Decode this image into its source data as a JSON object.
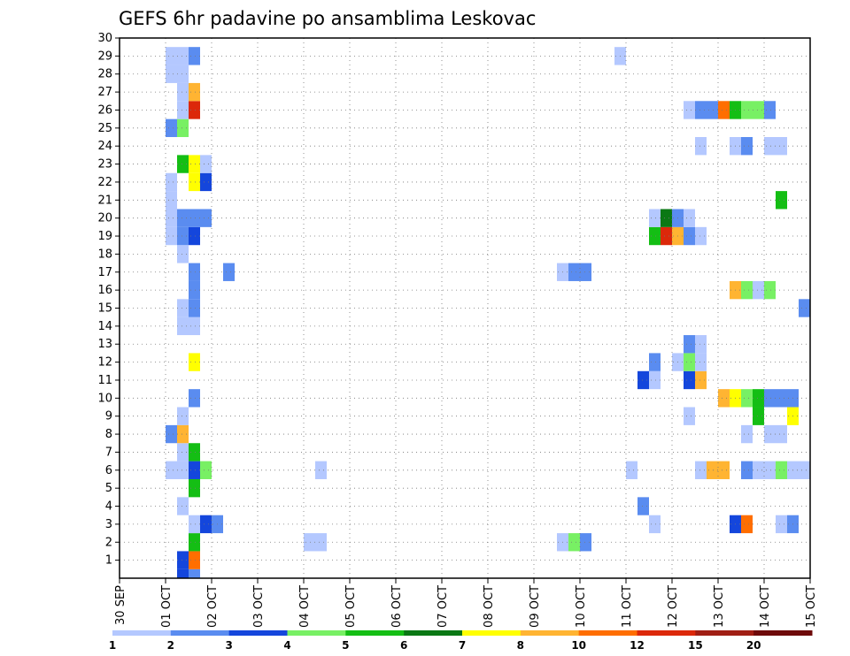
{
  "chart_data": {
    "type": "heatmap",
    "title": "GEFS 6hr padavine po ansamblima Leskovac",
    "y_label": "",
    "x_label": "",
    "y_range": [
      0,
      30
    ],
    "y_ticks": [
      "1",
      "2",
      "3",
      "4",
      "5",
      "6",
      "7",
      "8",
      "9",
      "10",
      "11",
      "12",
      "13",
      "14",
      "15",
      "16",
      "17",
      "18",
      "19",
      "20",
      "21",
      "22",
      "23",
      "24",
      "25",
      "26",
      "27",
      "28",
      "29",
      "30"
    ],
    "x_range_days": [
      0,
      15
    ],
    "x_tick_labels": [
      "30 SEP",
      "01 OCT",
      "02 OCT",
      "03 OCT",
      "04 OCT",
      "05 OCT",
      "06 OCT",
      "07 OCT",
      "08 OCT",
      "09 OCT",
      "10 OCT",
      "11 OCT",
      "12 OCT",
      "13 OCT",
      "14 OCT",
      "15 OCT"
    ],
    "grid": true,
    "legend": {
      "position": "bottom",
      "labels": [
        "1",
        "2",
        "3",
        "4",
        "5",
        "6",
        "7",
        "8",
        "10",
        "12",
        "15",
        "20"
      ],
      "colors": [
        "#b4c8ff",
        "#5a8cf0",
        "#1446dc",
        "#78f064",
        "#14be14",
        "#0a7814",
        "#ffff00",
        "#ffb432",
        "#ff6e00",
        "#dc280a",
        "#a01e14",
        "#6e0a0a"
      ]
    },
    "cells": [
      {
        "x": [
          1.25,
          1.5
        ],
        "y": [
          0.5,
          1.5
        ],
        "color": "#b4c8ff"
      },
      {
        "x": [
          1.5,
          1.75
        ],
        "y": [
          -0.5,
          0.5
        ],
        "color": "#5a8cf0"
      },
      {
        "x": [
          1.5,
          1.75
        ],
        "y": [
          0.5,
          1.5
        ],
        "color": "#ff6e00"
      },
      {
        "x": [
          1.25,
          1.5
        ],
        "y": [
          -0.5,
          0.5
        ],
        "color": "#1446dc"
      },
      {
        "x": [
          1.25,
          1.5
        ],
        "y": [
          0.5,
          1.5
        ],
        "color": "#1446dc"
      },
      {
        "x": [
          1.5,
          1.75
        ],
        "y": [
          1.5,
          2.5
        ],
        "color": "#14be14"
      },
      {
        "x": [
          4.0,
          4.5
        ],
        "y": [
          1.5,
          2.5
        ],
        "color": "#b4c8ff"
      },
      {
        "x": [
          9.5,
          9.75
        ],
        "y": [
          1.5,
          2.5
        ],
        "color": "#b4c8ff"
      },
      {
        "x": [
          9.75,
          10.0
        ],
        "y": [
          1.5,
          2.5
        ],
        "color": "#78f064"
      },
      {
        "x": [
          10.0,
          10.25
        ],
        "y": [
          1.5,
          2.5
        ],
        "color": "#5a8cf0"
      },
      {
        "x": [
          1.5,
          1.75
        ],
        "y": [
          2.5,
          3.5
        ],
        "color": "#b4c8ff"
      },
      {
        "x": [
          1.75,
          2.0
        ],
        "y": [
          2.5,
          3.5
        ],
        "color": "#1446dc"
      },
      {
        "x": [
          2.0,
          2.25
        ],
        "y": [
          2.5,
          3.5
        ],
        "color": "#5a8cf0"
      },
      {
        "x": [
          11.5,
          11.75
        ],
        "y": [
          2.5,
          3.5
        ],
        "color": "#b4c8ff"
      },
      {
        "x": [
          13.25,
          13.5
        ],
        "y": [
          2.5,
          3.5
        ],
        "color": "#1446dc"
      },
      {
        "x": [
          13.5,
          13.75
        ],
        "y": [
          2.5,
          3.5
        ],
        "color": "#ff6e00"
      },
      {
        "x": [
          14.25,
          14.5
        ],
        "y": [
          2.5,
          3.5
        ],
        "color": "#b4c8ff"
      },
      {
        "x": [
          14.5,
          14.75
        ],
        "y": [
          2.5,
          3.5
        ],
        "color": "#5a8cf0"
      },
      {
        "x": [
          1.25,
          1.5
        ],
        "y": [
          3.5,
          4.5
        ],
        "color": "#b4c8ff"
      },
      {
        "x": [
          11.25,
          11.5
        ],
        "y": [
          3.5,
          4.5
        ],
        "color": "#5a8cf0"
      },
      {
        "x": [
          1.5,
          1.75
        ],
        "y": [
          4.5,
          5.5
        ],
        "color": "#14be14"
      },
      {
        "x": [
          1.25,
          1.5
        ],
        "y": [
          5.5,
          6.5
        ],
        "color": "#b4c8ff"
      },
      {
        "x": [
          1.0,
          1.25
        ],
        "y": [
          5.5,
          6.5
        ],
        "color": "#b4c8ff"
      },
      {
        "x": [
          1.5,
          1.75
        ],
        "y": [
          5.5,
          6.5
        ],
        "color": "#1446dc"
      },
      {
        "x": [
          1.75,
          2.0
        ],
        "y": [
          5.5,
          6.5
        ],
        "color": "#78f064"
      },
      {
        "x": [
          4.25,
          4.5
        ],
        "y": [
          5.5,
          6.5
        ],
        "color": "#b4c8ff"
      },
      {
        "x": [
          11.0,
          11.25
        ],
        "y": [
          5.5,
          6.5
        ],
        "color": "#b4c8ff"
      },
      {
        "x": [
          12.5,
          12.75
        ],
        "y": [
          5.5,
          6.5
        ],
        "color": "#b4c8ff"
      },
      {
        "x": [
          12.75,
          13.25
        ],
        "y": [
          5.5,
          6.5
        ],
        "color": "#ffb432"
      },
      {
        "x": [
          13.5,
          13.75
        ],
        "y": [
          5.5,
          6.5
        ],
        "color": "#5a8cf0"
      },
      {
        "x": [
          13.75,
          14.25
        ],
        "y": [
          5.5,
          6.5
        ],
        "color": "#b4c8ff"
      },
      {
        "x": [
          14.25,
          14.5
        ],
        "y": [
          5.5,
          6.5
        ],
        "color": "#78f064"
      },
      {
        "x": [
          14.5,
          15.0
        ],
        "y": [
          5.5,
          6.5
        ],
        "color": "#b4c8ff"
      },
      {
        "x": [
          1.25,
          1.5
        ],
        "y": [
          6.5,
          7.5
        ],
        "color": "#b4c8ff"
      },
      {
        "x": [
          1.5,
          1.75
        ],
        "y": [
          6.5,
          7.5
        ],
        "color": "#14be14"
      },
      {
        "x": [
          1.0,
          1.25
        ],
        "y": [
          7.5,
          8.5
        ],
        "color": "#5a8cf0"
      },
      {
        "x": [
          1.25,
          1.5
        ],
        "y": [
          7.5,
          8.5
        ],
        "color": "#ffb432"
      },
      {
        "x": [
          13.5,
          13.75
        ],
        "y": [
          7.5,
          8.5
        ],
        "color": "#b4c8ff"
      },
      {
        "x": [
          14.0,
          14.5
        ],
        "y": [
          7.5,
          8.5
        ],
        "color": "#b4c8ff"
      },
      {
        "x": [
          1.25,
          1.5
        ],
        "y": [
          8.5,
          9.5
        ],
        "color": "#b4c8ff"
      },
      {
        "x": [
          12.25,
          12.5
        ],
        "y": [
          8.5,
          9.5
        ],
        "color": "#b4c8ff"
      },
      {
        "x": [
          13.75,
          14.0
        ],
        "y": [
          8.5,
          9.5
        ],
        "color": "#14be14"
      },
      {
        "x": [
          14.5,
          14.75
        ],
        "y": [
          8.5,
          9.5
        ],
        "color": "#ffff00"
      },
      {
        "x": [
          1.5,
          1.75
        ],
        "y": [
          9.5,
          10.5
        ],
        "color": "#5a8cf0"
      },
      {
        "x": [
          13.0,
          13.25
        ],
        "y": [
          9.5,
          10.5
        ],
        "color": "#ffb432"
      },
      {
        "x": [
          13.25,
          13.5
        ],
        "y": [
          9.5,
          10.5
        ],
        "color": "#ffff00"
      },
      {
        "x": [
          13.5,
          13.75
        ],
        "y": [
          9.5,
          10.5
        ],
        "color": "#78f064"
      },
      {
        "x": [
          13.75,
          14.0
        ],
        "y": [
          9.5,
          10.5
        ],
        "color": "#14be14"
      },
      {
        "x": [
          14.0,
          14.5
        ],
        "y": [
          9.5,
          10.5
        ],
        "color": "#5a8cf0"
      },
      {
        "x": [
          14.5,
          14.75
        ],
        "y": [
          9.5,
          10.5
        ],
        "color": "#5a8cf0"
      },
      {
        "x": [
          11.25,
          11.5
        ],
        "y": [
          10.5,
          11.5
        ],
        "color": "#1446dc"
      },
      {
        "x": [
          11.5,
          11.75
        ],
        "y": [
          10.5,
          11.5
        ],
        "color": "#b4c8ff"
      },
      {
        "x": [
          12.25,
          12.5
        ],
        "y": [
          10.5,
          11.5
        ],
        "color": "#1446dc"
      },
      {
        "x": [
          12.5,
          12.75
        ],
        "y": [
          10.5,
          11.5
        ],
        "color": "#ffb432"
      },
      {
        "x": [
          1.5,
          1.75
        ],
        "y": [
          11.5,
          12.5
        ],
        "color": "#ffff00"
      },
      {
        "x": [
          11.5,
          11.75
        ],
        "y": [
          11.5,
          12.5
        ],
        "color": "#5a8cf0"
      },
      {
        "x": [
          12.0,
          12.25
        ],
        "y": [
          11.5,
          12.5
        ],
        "color": "#b4c8ff"
      },
      {
        "x": [
          12.25,
          12.5
        ],
        "y": [
          11.5,
          12.5
        ],
        "color": "#78f064"
      },
      {
        "x": [
          12.5,
          12.75
        ],
        "y": [
          11.5,
          12.5
        ],
        "color": "#b4c8ff"
      },
      {
        "x": [
          12.5,
          12.75
        ],
        "y": [
          12.5,
          13.5
        ],
        "color": "#b4c8ff"
      },
      {
        "x": [
          12.25,
          12.5
        ],
        "y": [
          12.5,
          13.5
        ],
        "color": "#5a8cf0"
      },
      {
        "x": [
          1.25,
          1.75
        ],
        "y": [
          13.5,
          14.5
        ],
        "color": "#b4c8ff"
      },
      {
        "x": [
          1.25,
          1.5
        ],
        "y": [
          14.5,
          15.5
        ],
        "color": "#b4c8ff"
      },
      {
        "x": [
          1.5,
          1.75
        ],
        "y": [
          14.5,
          15.5
        ],
        "color": "#5a8cf0"
      },
      {
        "x": [
          14.75,
          15.0
        ],
        "y": [
          14.5,
          15.5
        ],
        "color": "#5a8cf0"
      },
      {
        "x": [
          1.5,
          1.75
        ],
        "y": [
          15.5,
          16.5
        ],
        "color": "#5a8cf0"
      },
      {
        "x": [
          1.5,
          1.75
        ],
        "y": [
          16.5,
          17.5
        ],
        "color": "#5a8cf0"
      },
      {
        "x": [
          13.25,
          13.5
        ],
        "y": [
          15.5,
          16.5
        ],
        "color": "#ffb432"
      },
      {
        "x": [
          13.5,
          13.75
        ],
        "y": [
          15.5,
          16.5
        ],
        "color": "#78f064"
      },
      {
        "x": [
          13.75,
          14.0
        ],
        "y": [
          15.5,
          16.5
        ],
        "color": "#b4c8ff"
      },
      {
        "x": [
          14.0,
          14.25
        ],
        "y": [
          15.5,
          16.5
        ],
        "color": "#78f064"
      },
      {
        "x": [
          2.25,
          2.5
        ],
        "y": [
          16.5,
          17.5
        ],
        "color": "#5a8cf0"
      },
      {
        "x": [
          9.5,
          9.75
        ],
        "y": [
          16.5,
          17.5
        ],
        "color": "#b4c8ff"
      },
      {
        "x": [
          9.75,
          10.25
        ],
        "y": [
          16.5,
          17.5
        ],
        "color": "#5a8cf0"
      },
      {
        "x": [
          1.25,
          1.5
        ],
        "y": [
          17.5,
          18.5
        ],
        "color": "#b4c8ff"
      },
      {
        "x": [
          1.0,
          1.25
        ],
        "y": [
          18.5,
          19.5
        ],
        "color": "#b4c8ff"
      },
      {
        "x": [
          1.25,
          1.5
        ],
        "y": [
          18.5,
          19.5
        ],
        "color": "#5a8cf0"
      },
      {
        "x": [
          1.5,
          1.75
        ],
        "y": [
          18.5,
          19.5
        ],
        "color": "#1446dc"
      },
      {
        "x": [
          11.5,
          11.75
        ],
        "y": [
          18.5,
          19.5
        ],
        "color": "#14be14"
      },
      {
        "x": [
          11.75,
          12.0
        ],
        "y": [
          18.5,
          19.5
        ],
        "color": "#dc280a"
      },
      {
        "x": [
          12.0,
          12.25
        ],
        "y": [
          18.5,
          19.5
        ],
        "color": "#ffb432"
      },
      {
        "x": [
          12.25,
          12.5
        ],
        "y": [
          18.5,
          19.5
        ],
        "color": "#5a8cf0"
      },
      {
        "x": [
          12.5,
          12.75
        ],
        "y": [
          18.5,
          19.5
        ],
        "color": "#b4c8ff"
      },
      {
        "x": [
          1.25,
          2.0
        ],
        "y": [
          19.5,
          20.5
        ],
        "color": "#5a8cf0"
      },
      {
        "x": [
          1.0,
          1.25
        ],
        "y": [
          19.5,
          21.5
        ],
        "color": "#b4c8ff"
      },
      {
        "x": [
          11.5,
          11.75
        ],
        "y": [
          19.5,
          20.5
        ],
        "color": "#b4c8ff"
      },
      {
        "x": [
          11.75,
          12.0
        ],
        "y": [
          19.5,
          20.5
        ],
        "color": "#0a7814"
      },
      {
        "x": [
          12.0,
          12.25
        ],
        "y": [
          19.5,
          20.5
        ],
        "color": "#5a8cf0"
      },
      {
        "x": [
          12.25,
          12.5
        ],
        "y": [
          19.5,
          20.5
        ],
        "color": "#b4c8ff"
      },
      {
        "x": [
          14.25,
          14.5
        ],
        "y": [
          20.5,
          21.5
        ],
        "color": "#14be14"
      },
      {
        "x": [
          1.0,
          1.25
        ],
        "y": [
          21.5,
          22.5
        ],
        "color": "#b4c8ff"
      },
      {
        "x": [
          1.5,
          1.75
        ],
        "y": [
          21.5,
          22.5
        ],
        "color": "#ffff00"
      },
      {
        "x": [
          1.75,
          2.0
        ],
        "y": [
          21.5,
          22.5
        ],
        "color": "#1446dc"
      },
      {
        "x": [
          1.25,
          1.5
        ],
        "y": [
          22.5,
          23.5
        ],
        "color": "#14be14"
      },
      {
        "x": [
          1.5,
          1.75
        ],
        "y": [
          22.5,
          23.5
        ],
        "color": "#ffff00"
      },
      {
        "x": [
          1.75,
          2.0
        ],
        "y": [
          22.5,
          23.5
        ],
        "color": "#b4c8ff"
      },
      {
        "x": [
          12.5,
          12.75
        ],
        "y": [
          23.5,
          24.5
        ],
        "color": "#b4c8ff"
      },
      {
        "x": [
          13.25,
          13.5
        ],
        "y": [
          23.5,
          24.5
        ],
        "color": "#b4c8ff"
      },
      {
        "x": [
          13.5,
          13.75
        ],
        "y": [
          23.5,
          24.5
        ],
        "color": "#5a8cf0"
      },
      {
        "x": [
          14.0,
          14.5
        ],
        "y": [
          23.5,
          24.5
        ],
        "color": "#b4c8ff"
      },
      {
        "x": [
          1.0,
          1.25
        ],
        "y": [
          24.5,
          25.5
        ],
        "color": "#5a8cf0"
      },
      {
        "x": [
          1.25,
          1.5
        ],
        "y": [
          24.5,
          25.5
        ],
        "color": "#78f064"
      },
      {
        "x": [
          1.25,
          1.5
        ],
        "y": [
          25.5,
          26.5
        ],
        "color": "#b4c8ff"
      },
      {
        "x": [
          1.5,
          1.75
        ],
        "y": [
          25.5,
          26.5
        ],
        "color": "#dc280a"
      },
      {
        "x": [
          12.25,
          12.5
        ],
        "y": [
          25.5,
          26.5
        ],
        "color": "#b4c8ff"
      },
      {
        "x": [
          12.5,
          13.0
        ],
        "y": [
          25.5,
          26.5
        ],
        "color": "#5a8cf0"
      },
      {
        "x": [
          13.0,
          13.25
        ],
        "y": [
          25.5,
          26.5
        ],
        "color": "#ff6e00"
      },
      {
        "x": [
          13.25,
          13.5
        ],
        "y": [
          25.5,
          26.5
        ],
        "color": "#14be14"
      },
      {
        "x": [
          13.5,
          14.0
        ],
        "y": [
          25.5,
          26.5
        ],
        "color": "#78f064"
      },
      {
        "x": [
          14.0,
          14.25
        ],
        "y": [
          25.5,
          26.5
        ],
        "color": "#5a8cf0"
      },
      {
        "x": [
          1.25,
          1.5
        ],
        "y": [
          26.5,
          27.5
        ],
        "color": "#b4c8ff"
      },
      {
        "x": [
          1.5,
          1.75
        ],
        "y": [
          26.5,
          27.5
        ],
        "color": "#ffb432"
      },
      {
        "x": [
          1.0,
          1.5
        ],
        "y": [
          27.5,
          28.5
        ],
        "color": "#b4c8ff"
      },
      {
        "x": [
          1.0,
          1.5
        ],
        "y": [
          28.5,
          29.5
        ],
        "color": "#b4c8ff"
      },
      {
        "x": [
          1.5,
          1.75
        ],
        "y": [
          28.5,
          29.5
        ],
        "color": "#5a8cf0"
      },
      {
        "x": [
          10.75,
          11.0
        ],
        "y": [
          28.5,
          29.5
        ],
        "color": "#b4c8ff"
      }
    ]
  }
}
